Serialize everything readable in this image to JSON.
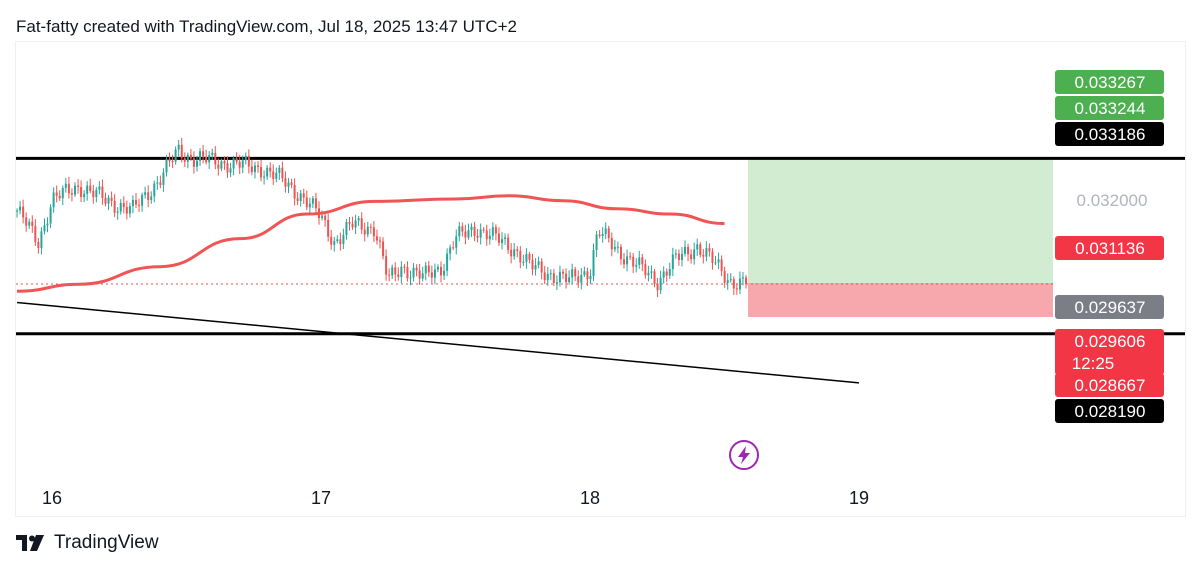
{
  "header": {
    "attribution": "Fat-fatty created with TradingView.com, Jul 18, 2025 13:47 UTC+2"
  },
  "footer": {
    "brand": "TradingView"
  },
  "icons": {
    "logo": "tradingview-logo-icon",
    "event": "lightning-event-icon"
  },
  "colors": {
    "up": "#26a69a",
    "down": "#ef5350",
    "ma": "#f05454",
    "profit_zone": "#d2ecd2",
    "loss_zone": "#f7a8ad",
    "label_green": "#4caf50",
    "label_red": "#f23645",
    "label_gray": "#7b7e87",
    "label_black": "#000000",
    "event_icon": "#9c27b0"
  },
  "chart_data": {
    "type": "candlestick",
    "title": "",
    "x_axis": {
      "ticks": [
        "16",
        "17",
        "18",
        "19"
      ]
    },
    "y_axis": {
      "position": "right",
      "ticks": [
        "0.032000"
      ]
    },
    "grid": false,
    "price_labels": [
      {
        "value": "0.033267",
        "kind": "target-2",
        "color": "green"
      },
      {
        "value": "0.033244",
        "kind": "target-1",
        "color": "green"
      },
      {
        "value": "0.033186",
        "kind": "resistance-line",
        "color": "black"
      },
      {
        "value": "0.031136",
        "kind": "moving-average",
        "color": "red"
      },
      {
        "value": "0.029637",
        "kind": "entry",
        "color": "gray"
      },
      {
        "value": "0.029606",
        "kind": "last-price",
        "color": "red",
        "countdown": "12:25"
      },
      {
        "value": "0.028667",
        "kind": "stop-loss",
        "color": "red"
      },
      {
        "value": "0.028190",
        "kind": "support-line",
        "color": "black"
      }
    ],
    "horizontal_lines": [
      {
        "name": "resistance",
        "price": 0.033186
      },
      {
        "name": "support",
        "price": 0.02819
      }
    ],
    "trendline": {
      "from": {
        "day": 15.87,
        "price": 0.02908
      },
      "to": {
        "day": 19.0,
        "price": 0.02679
      }
    },
    "position": {
      "type": "long",
      "entry": 0.029637,
      "target": 0.033186,
      "stop": 0.028667
    },
    "moving_average": [
      [
        15.87,
        0.0294
      ],
      [
        16.1,
        0.0296
      ],
      [
        16.4,
        0.0301
      ],
      [
        16.7,
        0.0309
      ],
      [
        16.95,
        0.0316
      ],
      [
        17.2,
        0.03196
      ],
      [
        17.5,
        0.03203
      ],
      [
        17.7,
        0.03212
      ],
      [
        17.9,
        0.03198
      ],
      [
        18.1,
        0.03175
      ],
      [
        18.3,
        0.0316
      ],
      [
        18.5,
        0.03133
      ]
    ],
    "price_path": [
      [
        15.87,
        0.0317
      ],
      [
        15.95,
        0.0308
      ],
      [
        16.0,
        0.032
      ],
      [
        16.1,
        0.0324
      ],
      [
        16.2,
        0.032
      ],
      [
        16.3,
        0.0317
      ],
      [
        16.4,
        0.0326
      ],
      [
        16.47,
        0.0334
      ],
      [
        16.52,
        0.0332
      ],
      [
        16.6,
        0.0331
      ],
      [
        16.7,
        0.033
      ],
      [
        16.78,
        0.0329
      ],
      [
        16.85,
        0.0326
      ],
      [
        16.93,
        0.0321
      ],
      [
        17.0,
        0.0315
      ],
      [
        17.05,
        0.0308
      ],
      [
        17.12,
        0.0313
      ],
      [
        17.2,
        0.0312
      ],
      [
        17.25,
        0.0297
      ],
      [
        17.3,
        0.0301
      ],
      [
        17.38,
        0.0298
      ],
      [
        17.45,
        0.0301
      ],
      [
        17.5,
        0.0309
      ],
      [
        17.58,
        0.0312
      ],
      [
        17.65,
        0.0309
      ],
      [
        17.72,
        0.0306
      ],
      [
        17.78,
        0.0301
      ],
      [
        17.85,
        0.0299
      ],
      [
        17.92,
        0.0297
      ],
      [
        18.0,
        0.03
      ],
      [
        18.03,
        0.0311
      ],
      [
        18.1,
        0.0306
      ],
      [
        18.18,
        0.0301
      ],
      [
        18.25,
        0.0297
      ],
      [
        18.32,
        0.0303
      ],
      [
        18.4,
        0.0307
      ],
      [
        18.45,
        0.0303
      ],
      [
        18.52,
        0.0297
      ],
      [
        18.58,
        0.02961
      ]
    ]
  }
}
